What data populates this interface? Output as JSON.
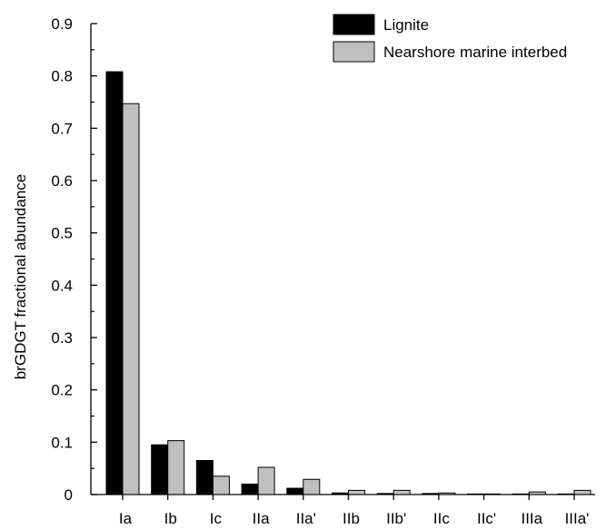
{
  "chart_data": {
    "type": "bar",
    "categories": [
      "Ia",
      "Ib",
      "Ic",
      "IIa",
      "IIa'",
      "IIb",
      "IIb'",
      "IIc",
      "IIc'",
      "IIIa",
      "IIIa'"
    ],
    "series": [
      {
        "name": "Lignite",
        "color": "#000000",
        "values": [
          0.808,
          0.095,
          0.065,
          0.02,
          0.012,
          0.003,
          0.002,
          0.002,
          0.001,
          0.001,
          0.001
        ]
      },
      {
        "name": "Nearshore marine interbed",
        "color": "#bfbfbf",
        "values": [
          0.747,
          0.103,
          0.035,
          0.052,
          0.029,
          0.008,
          0.008,
          0.003,
          0.001,
          0.005,
          0.008
        ]
      }
    ],
    "ylabel": "brGDGT fractional abundance",
    "ylim": [
      0,
      0.9
    ],
    "yticks": [
      "0",
      "0.1",
      "0.2",
      "0.3",
      "0.4",
      "0.5",
      "0.6",
      "0.7",
      "0.8",
      "0.9"
    ],
    "legend_position": "top-right",
    "grid": false
  }
}
